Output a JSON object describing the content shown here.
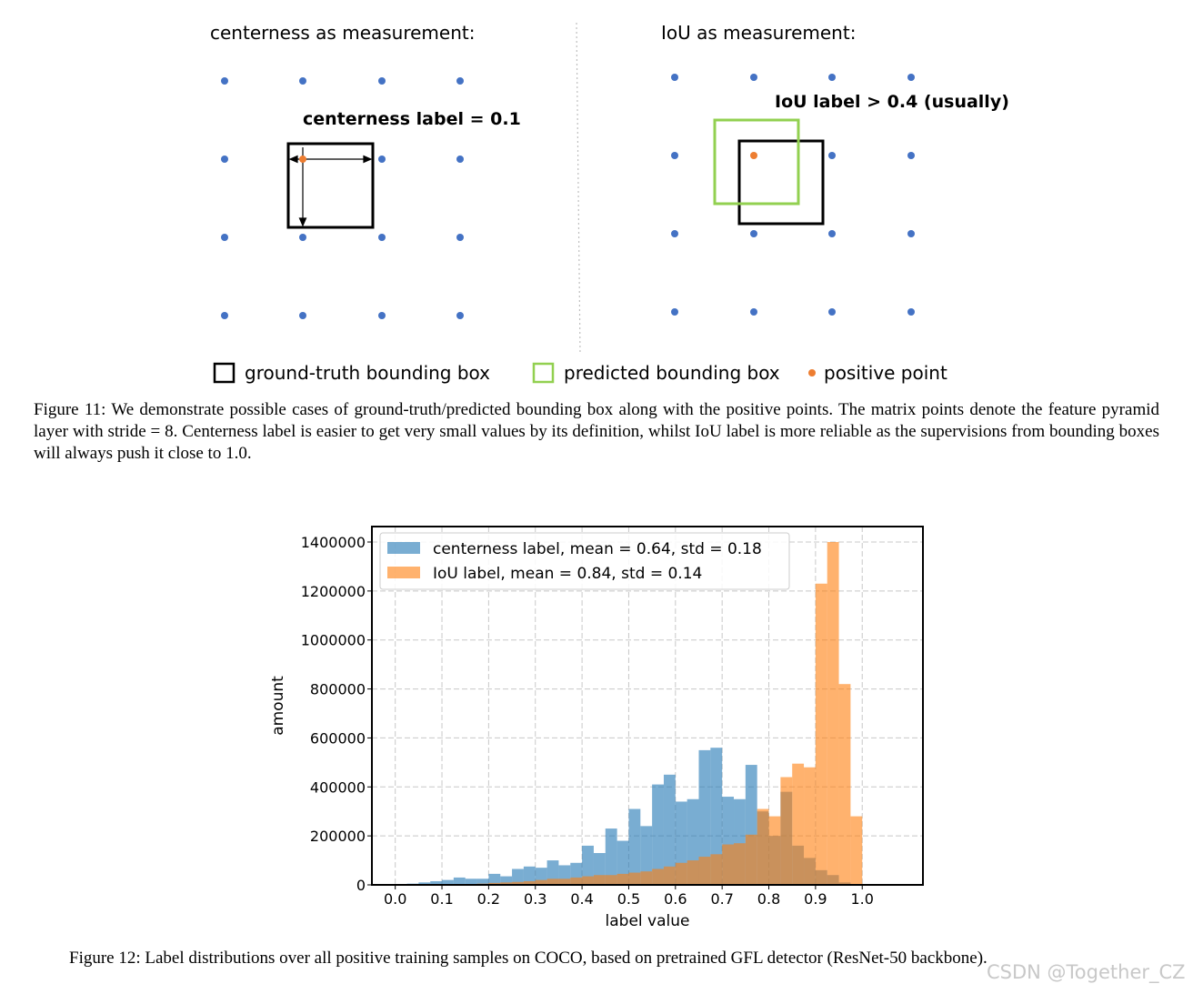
{
  "figure11": {
    "left_panel_title": "centerness as measurement:",
    "right_panel_title": "IoU as measurement:",
    "centerness_annotation": "centerness label = 0.1",
    "iou_annotation": "IoU label > 0.4 (usually)",
    "legend": {
      "ground_truth": "ground-truth bounding box",
      "predicted": "predicted bounding box",
      "positive_point": "positive point"
    },
    "colors": {
      "grid_point": "#4472c4",
      "positive_point": "#ed7d31",
      "predicted_box": "#92d050",
      "ground_truth_box": "#000000"
    },
    "caption": "Figure 11: We demonstrate possible cases of ground-truth/predicted bounding box along with the positive points. The matrix points denote the feature pyramid layer with stride = 8. Centerness label is easier to get very small values by its definition, whilst IoU label is more reliable as the supervisions from bounding boxes will always push it close to 1.0."
  },
  "figure12": {
    "caption": "Figure 12: Label distributions over all positive training samples on COCO, based on pretrained GFL detector (ResNet-50 backbone).",
    "watermark": "CSDN @Together_CZ"
  },
  "chart_data": {
    "type": "bar",
    "xlabel": "label value",
    "ylabel": "amount",
    "xlim": [
      -0.05,
      1.13
    ],
    "ylim": [
      0,
      1400000
    ],
    "x_ticks": [
      0.0,
      0.1,
      0.2,
      0.3,
      0.4,
      0.5,
      0.6,
      0.7,
      0.8,
      0.9,
      1.0
    ],
    "x_tick_labels": [
      "0.0",
      "0.1",
      "0.2",
      "0.3",
      "0.4",
      "0.5",
      "0.6",
      "0.7",
      "0.8",
      "0.9",
      "1.0"
    ],
    "y_ticks": [
      0,
      200000,
      400000,
      600000,
      800000,
      1000000,
      1200000,
      1400000
    ],
    "y_tick_labels": [
      "0",
      "200000",
      "400000",
      "600000",
      "800000",
      "1000000",
      "1200000",
      "1400000"
    ],
    "grid": true,
    "legend_position": "top-left",
    "bin_width": 0.025,
    "series": [
      {
        "name": "centerness label, mean = 0.64, std = 0.18",
        "color": "#1f77b4",
        "bin_starts": [
          0.0,
          0.025,
          0.05,
          0.075,
          0.1,
          0.125,
          0.15,
          0.175,
          0.2,
          0.225,
          0.25,
          0.275,
          0.3,
          0.325,
          0.35,
          0.375,
          0.4,
          0.425,
          0.45,
          0.475,
          0.5,
          0.525,
          0.55,
          0.575,
          0.6,
          0.625,
          0.65,
          0.675,
          0.7,
          0.725,
          0.75,
          0.775,
          0.8,
          0.825,
          0.85,
          0.875,
          0.9,
          0.925,
          0.95,
          0.975
        ],
        "values": [
          2000,
          5000,
          10000,
          15000,
          20000,
          30000,
          25000,
          25000,
          45000,
          35000,
          65000,
          75000,
          70000,
          100000,
          80000,
          90000,
          160000,
          130000,
          230000,
          180000,
          310000,
          240000,
          410000,
          450000,
          340000,
          350000,
          550000,
          560000,
          360000,
          350000,
          490000,
          300000,
          200000,
          380000,
          160000,
          110000,
          60000,
          40000,
          10000,
          0
        ]
      },
      {
        "name": "IoU label, mean = 0.84, std = 0.14",
        "color": "#ff7f0e",
        "bin_starts": [
          0.0,
          0.025,
          0.05,
          0.075,
          0.1,
          0.125,
          0.15,
          0.175,
          0.2,
          0.225,
          0.25,
          0.275,
          0.3,
          0.325,
          0.35,
          0.375,
          0.4,
          0.425,
          0.45,
          0.475,
          0.5,
          0.525,
          0.55,
          0.575,
          0.6,
          0.625,
          0.65,
          0.675,
          0.7,
          0.725,
          0.75,
          0.775,
          0.8,
          0.825,
          0.85,
          0.875,
          0.9,
          0.925,
          0.95,
          0.975
        ],
        "values": [
          0,
          0,
          0,
          0,
          0,
          2000,
          3000,
          5000,
          8000,
          10000,
          12000,
          15000,
          20000,
          25000,
          25000,
          30000,
          35000,
          40000,
          40000,
          45000,
          50000,
          55000,
          65000,
          75000,
          90000,
          100000,
          115000,
          125000,
          165000,
          170000,
          205000,
          310000,
          280000,
          440000,
          495000,
          480000,
          1230000,
          1400000,
          820000,
          280000
        ]
      }
    ]
  }
}
